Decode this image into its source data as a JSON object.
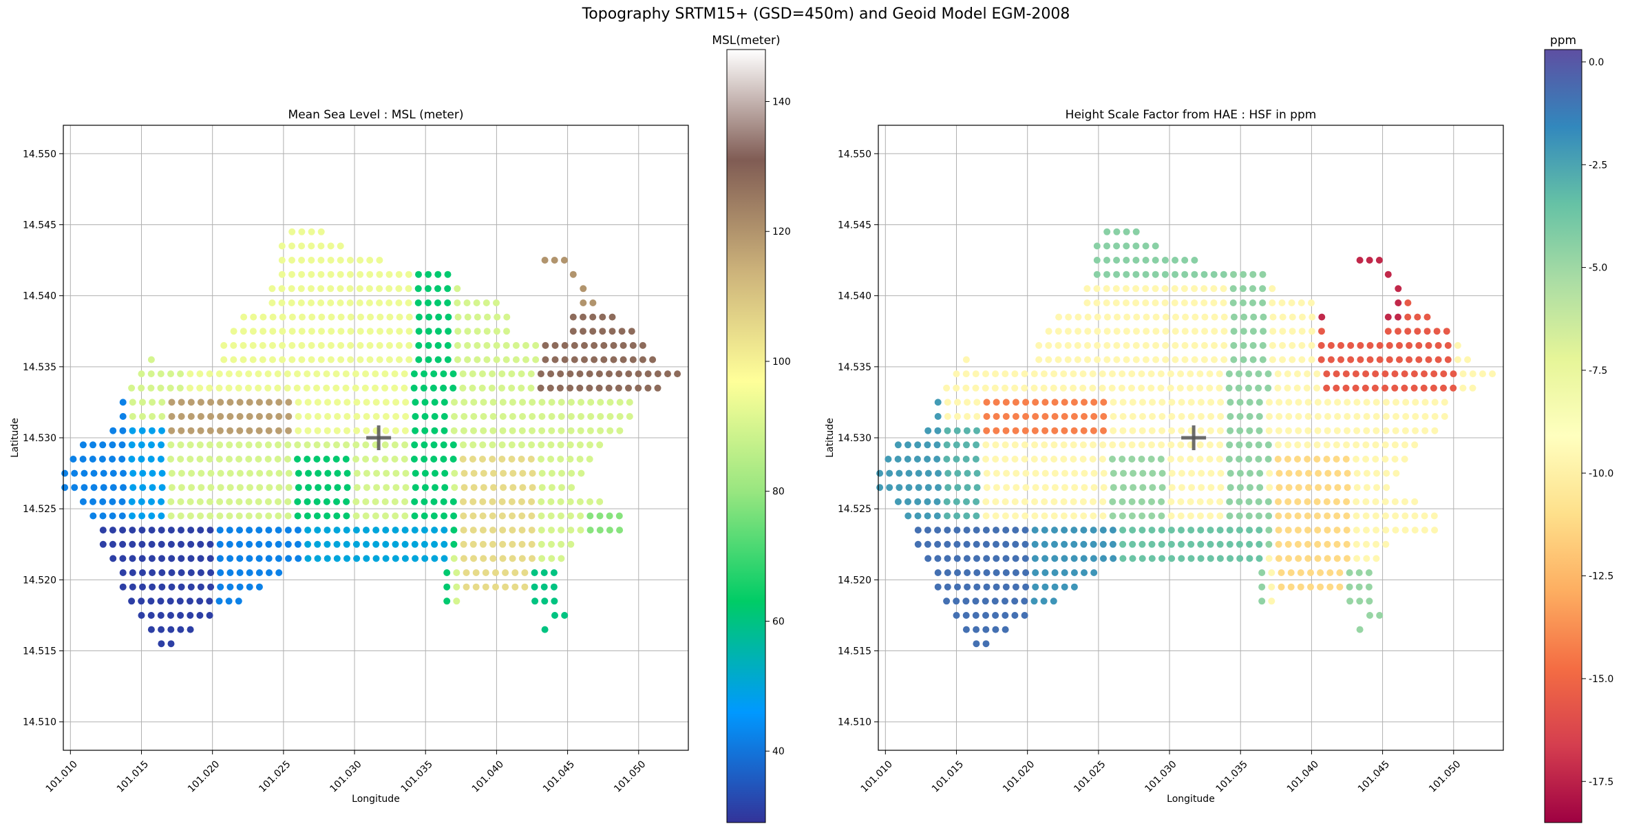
{
  "figure_title": "Topography SRTM15+ (GSD=450m) and Geoid Model EGM-2008",
  "chart_data": [
    {
      "type": "scatter",
      "title": "Mean Sea Level : MSL (meter)",
      "xlabel": "Longitude",
      "ylabel": "Latitude",
      "xlim": [
        101.0095,
        101.0535
      ],
      "ylim": [
        14.508,
        14.552
      ],
      "xticks": [
        "101.010",
        "101.015",
        "101.020",
        "101.025",
        "101.030",
        "101.035",
        "101.040",
        "101.045",
        "101.050"
      ],
      "xtick_values": [
        101.01,
        101.015,
        101.02,
        101.025,
        101.03,
        101.035,
        101.04,
        101.045,
        101.05
      ],
      "yticks": [
        "14.510",
        "14.515",
        "14.520",
        "14.525",
        "14.530",
        "14.535",
        "14.540",
        "14.545",
        "14.550"
      ],
      "ytick_values": [
        14.51,
        14.515,
        14.52,
        14.525,
        14.53,
        14.535,
        14.54,
        14.545,
        14.55
      ],
      "grid": true,
      "marker_center": [
        101.0317,
        14.53
      ],
      "colorbar": {
        "label": "MSL(meter)",
        "range": [
          29,
          148
        ],
        "ticks": [
          "40",
          "60",
          "80",
          "100",
          "120",
          "140"
        ],
        "tick_values": [
          40,
          60,
          80,
          100,
          120,
          140
        ],
        "colormap": "terrain",
        "colors": [
          "#333399",
          "#0099ff",
          "#00cc66",
          "#99e680",
          "#ffff99",
          "#ccb27a",
          "#805c54",
          "#ffffff"
        ]
      },
      "values_description": "MSL elevation per grid point (meters), approx. 30-148"
    },
    {
      "type": "scatter",
      "title": "Height Scale Factor from HAE : HSF in ppm",
      "xlabel": "Longitude",
      "ylabel": "Latitude",
      "xlim": [
        101.0095,
        101.0535
      ],
      "ylim": [
        14.508,
        14.552
      ],
      "xticks": [
        "101.010",
        "101.015",
        "101.020",
        "101.025",
        "101.030",
        "101.035",
        "101.040",
        "101.045",
        "101.050"
      ],
      "xtick_values": [
        101.01,
        101.015,
        101.02,
        101.025,
        101.03,
        101.035,
        101.04,
        101.045,
        101.05
      ],
      "yticks": [
        "14.510",
        "14.515",
        "14.520",
        "14.525",
        "14.530",
        "14.535",
        "14.540",
        "14.545",
        "14.550"
      ],
      "ytick_values": [
        14.51,
        14.515,
        14.52,
        14.525,
        14.53,
        14.535,
        14.54,
        14.545,
        14.55
      ],
      "grid": true,
      "marker_center": [
        101.0317,
        14.53
      ],
      "colorbar": {
        "label": "ppm",
        "range": [
          -18.5,
          0.3
        ],
        "ticks": [
          "0.0",
          "-2.5",
          "-5.0",
          "-7.5",
          "-10.0",
          "-12.5",
          "-15.0",
          "-17.5"
        ],
        "tick_values": [
          0.0,
          -2.5,
          -5.0,
          -7.5,
          -10.0,
          -12.5,
          -15.0,
          -17.5
        ],
        "colormap": "Spectral",
        "colors": [
          "#9e0142",
          "#d53e4f",
          "#f46d43",
          "#fdae61",
          "#fee08b",
          "#ffffbf",
          "#e6f598",
          "#abdda4",
          "#66c2a5",
          "#3288bd",
          "#5e4fa2"
        ]
      },
      "values_description": "HSF per grid point (ppm), approx. -18.5 to 0"
    }
  ],
  "grid_rows": [
    {
      "lat": 14.5445,
      "cols": [
        [
          101.0256,
          101.0277
        ]
      ]
    },
    {
      "lat": 14.5435,
      "cols": [
        [
          101.0249,
          101.0297
        ]
      ]
    },
    {
      "lat": 14.5425,
      "cols": [
        [
          101.0249,
          101.0324
        ],
        [
          101.0434,
          101.0454
        ]
      ]
    },
    {
      "lat": 14.5415,
      "cols": [
        [
          101.0249,
          101.0372
        ],
        [
          101.0454,
          101.0454
        ]
      ]
    },
    {
      "lat": 14.5405,
      "cols": [
        [
          101.0242,
          101.0379
        ],
        [
          101.0461,
          101.0461
        ]
      ]
    },
    {
      "lat": 14.5395,
      "cols": [
        [
          101.0242,
          101.0406
        ],
        [
          101.0461,
          101.0468
        ]
      ]
    },
    {
      "lat": 14.5385,
      "cols": [
        [
          101.0222,
          101.0413
        ],
        [
          101.0454,
          101.0488
        ]
      ]
    },
    {
      "lat": 14.5375,
      "cols": [
        [
          101.0215,
          101.0413
        ],
        [
          101.0454,
          101.0502
        ]
      ]
    },
    {
      "lat": 14.5365,
      "cols": [
        [
          101.0208,
          101.0509
        ]
      ]
    },
    {
      "lat": 14.5355,
      "cols": [
        [
          101.0157,
          101.0157
        ],
        [
          101.0208,
          101.0516
        ]
      ]
    },
    {
      "lat": 14.5345,
      "cols": [
        [
          101.015,
          101.0529
        ]
      ]
    },
    {
      "lat": 14.5335,
      "cols": [
        [
          101.0143,
          101.0516
        ]
      ]
    },
    {
      "lat": 14.5325,
      "cols": [
        [
          101.0137,
          101.0495
        ]
      ]
    },
    {
      "lat": 14.5315,
      "cols": [
        [
          101.0137,
          101.0495
        ]
      ]
    },
    {
      "lat": 14.5305,
      "cols": [
        [
          101.013,
          101.0488
        ]
      ]
    },
    {
      "lat": 14.5295,
      "cols": [
        [
          101.0109,
          101.0475
        ]
      ]
    },
    {
      "lat": 14.5285,
      "cols": [
        [
          101.0102,
          101.0468
        ]
      ]
    },
    {
      "lat": 14.5275,
      "cols": [
        [
          101.0096,
          101.0461
        ]
      ]
    },
    {
      "lat": 14.5265,
      "cols": [
        [
          101.0096,
          101.0454
        ]
      ]
    },
    {
      "lat": 14.5255,
      "cols": [
        [
          101.0109,
          101.0475
        ]
      ]
    },
    {
      "lat": 14.5245,
      "cols": [
        [
          101.0116,
          101.0488
        ]
      ]
    },
    {
      "lat": 14.5235,
      "cols": [
        [
          101.0123,
          101.0488
        ]
      ]
    },
    {
      "lat": 14.5225,
      "cols": [
        [
          101.0123,
          101.0454
        ]
      ]
    },
    {
      "lat": 14.5215,
      "cols": [
        [
          101.013,
          101.0447
        ]
      ]
    },
    {
      "lat": 14.5205,
      "cols": [
        [
          101.0137,
          101.0249
        ],
        [
          101.0365,
          101.0447
        ]
      ]
    },
    {
      "lat": 14.5195,
      "cols": [
        [
          101.0137,
          101.0236
        ],
        [
          101.0365,
          101.0447
        ]
      ]
    },
    {
      "lat": 14.5185,
      "cols": [
        [
          101.0143,
          101.0222
        ],
        [
          101.0365,
          101.0372
        ],
        [
          101.0427,
          101.0447
        ]
      ]
    },
    {
      "lat": 14.5175,
      "cols": [
        [
          101.015,
          101.0202
        ],
        [
          101.0441,
          101.0454
        ]
      ]
    },
    {
      "lat": 14.5165,
      "cols": [
        [
          101.0157,
          101.0188
        ],
        [
          101.0434,
          101.0434
        ]
      ]
    },
    {
      "lat": 14.5155,
      "cols": [
        [
          101.0164,
          101.0171
        ]
      ]
    }
  ]
}
